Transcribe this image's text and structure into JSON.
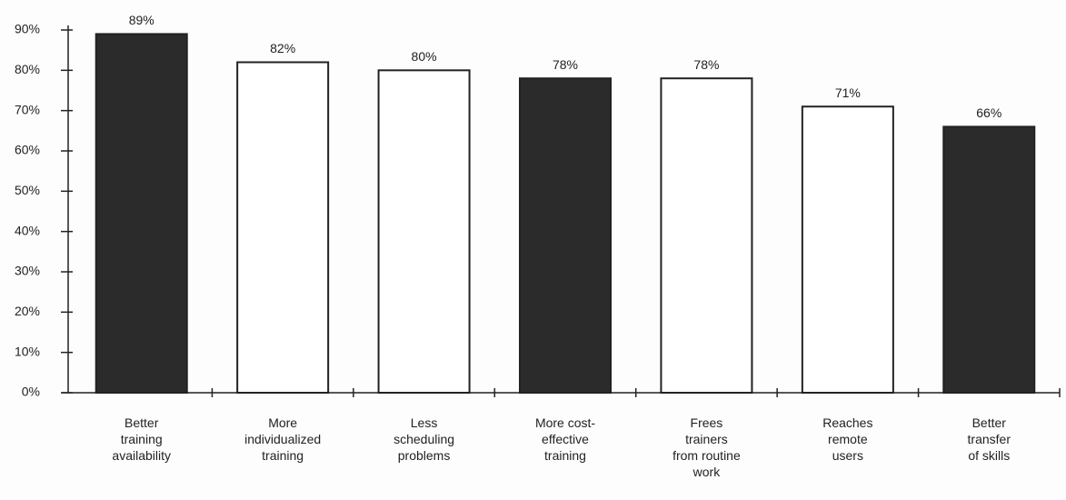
{
  "chart_data": {
    "type": "bar",
    "categories": [
      "Better\ntraining\navailability",
      "More\nindividualized\ntraining",
      "Less\nscheduling\nproblems",
      "More cost-\neffective\ntraining",
      "Frees\ntrainers\nfrom routine\nwork",
      "Reaches\nremote\nusers",
      "Better\ntransfer\nof skills"
    ],
    "values": [
      89,
      82,
      80,
      78,
      78,
      71,
      66
    ],
    "value_labels": [
      "89%",
      "82%",
      "80%",
      "78%",
      "78%",
      "71%",
      "66%"
    ],
    "colors": [
      "#2b2b2b",
      "#ffffff",
      "#ffffff",
      "#2b2b2b",
      "#ffffff",
      "#ffffff",
      "#2b2b2b"
    ],
    "ylim": [
      0,
      90
    ],
    "yticks": [
      {
        "value": 0,
        "label": "0%"
      },
      {
        "value": 10,
        "label": "10%"
      },
      {
        "value": 20,
        "label": "20%"
      },
      {
        "value": 30,
        "label": "30%"
      },
      {
        "value": 40,
        "label": "40%"
      },
      {
        "value": 50,
        "label": "50%"
      },
      {
        "value": 60,
        "label": "60%"
      },
      {
        "value": 70,
        "label": "70%"
      },
      {
        "value": 80,
        "label": "80%"
      },
      {
        "value": 90,
        "label": "90%"
      }
    ],
    "grid": false
  }
}
